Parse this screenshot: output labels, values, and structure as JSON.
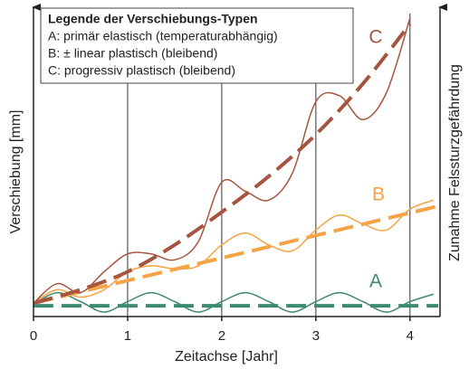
{
  "chart_data": {
    "type": "line",
    "legend": {
      "title": "Legende der Verschiebungs-Typen",
      "items": [
        "A: primär elastisch (temperaturabhängig)",
        "B: ± linear plastisch (bleibend)",
        "C: progressiv plastisch (bleibend)"
      ]
    },
    "xlabel": "Zeitachse [Jahr]",
    "ylabel": "Verschiebung [mm]",
    "y2label": "Zunahme Felssturzgefährdung",
    "xlim": [
      0,
      4.3
    ],
    "xticks": [
      0,
      1,
      2,
      3,
      4
    ],
    "ylim": [
      0,
      10
    ],
    "grid": true,
    "series": [
      {
        "name": "A",
        "color": "#3d8a70",
        "x": [
          0,
          0.25,
          0.5,
          0.75,
          1,
          1.25,
          1.5,
          1.75,
          2,
          2.25,
          2.5,
          2.75,
          3,
          3.25,
          3.5,
          3.75,
          4,
          4.25
        ],
        "values": [
          0.4,
          0.8,
          0.5,
          0.15,
          0.5,
          0.8,
          0.5,
          0.15,
          0.5,
          0.8,
          0.5,
          0.15,
          0.5,
          0.8,
          0.5,
          0.15,
          0.5,
          0.75
        ],
        "trend_x": [
          0,
          4.3
        ],
        "trend_values": [
          0.36,
          0.36
        ]
      },
      {
        "name": "B",
        "color": "#f5a445",
        "x": [
          0,
          0.25,
          0.5,
          0.75,
          1,
          1.25,
          1.5,
          1.75,
          2,
          2.25,
          2.5,
          2.75,
          3,
          3.25,
          3.5,
          3.75,
          4,
          4.25
        ],
        "values": [
          0.45,
          0.9,
          0.65,
          0.9,
          1.5,
          1.7,
          1.6,
          1.7,
          2.4,
          2.8,
          2.4,
          2.2,
          2.9,
          3.4,
          3.1,
          2.9,
          3.6,
          3.9
        ],
        "trend_x": [
          0,
          4.3
        ],
        "trend_values": [
          0.45,
          3.7
        ]
      },
      {
        "name": "C",
        "color": "#a5553d",
        "x": [
          0,
          0.25,
          0.5,
          0.75,
          1,
          1.25,
          1.5,
          1.75,
          2,
          2.25,
          2.5,
          2.75,
          3,
          3.25,
          3.5,
          3.75,
          4
        ],
        "values": [
          0.45,
          1.1,
          0.8,
          1.5,
          2.1,
          2.1,
          1.9,
          2.5,
          4.5,
          4.2,
          3.9,
          4.8,
          7.2,
          7.4,
          6.6,
          7.5,
          10.0
        ],
        "trend_x": [
          0,
          0.5,
          1,
          1.5,
          2,
          2.5,
          3,
          3.5,
          4
        ],
        "trend_values": [
          0.45,
          0.9,
          1.5,
          2.4,
          3.5,
          4.7,
          6.1,
          7.8,
          9.8
        ]
      }
    ]
  }
}
